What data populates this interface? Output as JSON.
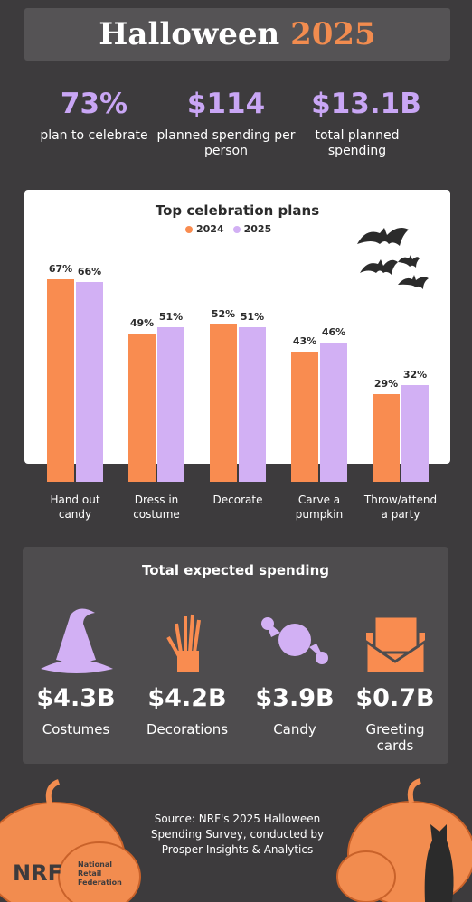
{
  "header": {
    "title": "Halloween",
    "year": "2025"
  },
  "stats": [
    {
      "value": "73%",
      "label": "plan to celebrate"
    },
    {
      "value": "$114",
      "label": "planned spending per person"
    },
    {
      "value": "$13.1B",
      "label": "total planned spending"
    }
  ],
  "chart_data": {
    "type": "bar",
    "title": "Top celebration plans",
    "categories": [
      "Hand out candy",
      "Dress in costume",
      "Decorate",
      "Carve a pumpkin",
      "Throw/attend a party"
    ],
    "series": [
      {
        "name": "2024",
        "color": "#f98c50",
        "values": [
          67,
          49,
          52,
          43,
          29
        ],
        "value_labels": [
          "67%",
          "49%",
          "52%",
          "43%",
          "29%"
        ]
      },
      {
        "name": "2025",
        "color": "#d2b0f4",
        "values": [
          66,
          51,
          51,
          46,
          32
        ],
        "value_labels": [
          "66%",
          "51%",
          "51%",
          "46%",
          "32%"
        ]
      }
    ]
  },
  "spending": {
    "title": "Total expected spending",
    "items": [
      {
        "amount": "$4.3B",
        "label": "Costumes"
      },
      {
        "amount": "$4.2B",
        "label": "Decorations"
      },
      {
        "amount": "$3.9B",
        "label": "Candy"
      },
      {
        "amount": "$0.7B",
        "label": "Greeting cards"
      }
    ]
  },
  "footer": {
    "source": "Source: NRF's 2025 Halloween Spending Survey, conducted by Prosper Insights & Analytics",
    "logo": "NRF",
    "logo_text": "National Retail Federation"
  }
}
